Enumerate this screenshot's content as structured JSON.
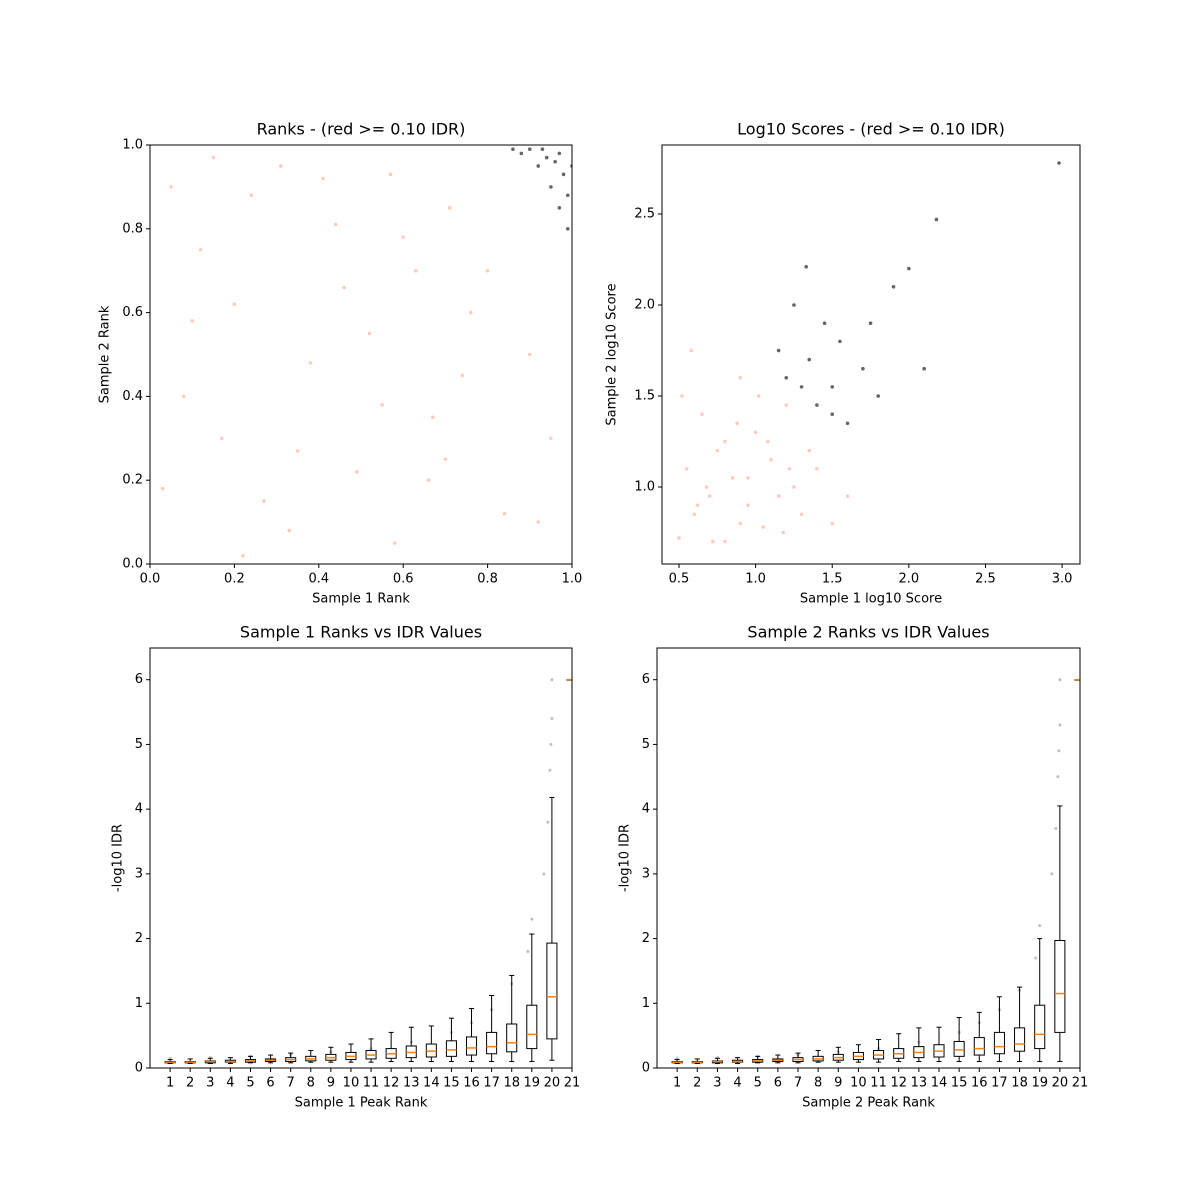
{
  "chart_data": [
    {
      "type": "scatter",
      "title": "Ranks - (red >= 0.10 IDR)",
      "x_label": "Sample 1 Rank",
      "y_label": "Sample 2 Rank",
      "xlim": [
        0,
        1
      ],
      "ylim": [
        0,
        1
      ],
      "xticks": [
        {
          "value": 0,
          "label": "0.0"
        },
        0.2,
        0.4,
        0.6,
        0.8,
        {
          "value": 1,
          "label": "1.0"
        }
      ],
      "yticks": [
        {
          "value": 0,
          "label": "0.0"
        },
        0.2,
        0.4,
        0.6,
        0.8,
        {
          "value": 1,
          "label": "1.0"
        }
      ],
      "series": [
        {
          "color": "#ff8c69",
          "x": [
            0.05,
            0.12,
            0.2,
            0.31,
            0.44,
            0.52,
            0.63,
            0.71,
            0.08,
            0.17,
            0.27,
            0.38,
            0.49,
            0.58,
            0.67,
            0.76,
            0.84,
            0.03,
            0.15,
            0.24,
            0.35,
            0.46,
            0.55,
            0.66,
            0.74,
            0.9,
            0.95,
            0.22,
            0.41,
            0.6,
            0.8,
            0.1,
            0.33,
            0.57,
            0.92,
            0.7
          ],
          "y": [
            0.9,
            0.75,
            0.62,
            0.95,
            0.81,
            0.55,
            0.7,
            0.85,
            0.4,
            0.3,
            0.15,
            0.48,
            0.22,
            0.05,
            0.35,
            0.6,
            0.12,
            0.18,
            0.97,
            0.88,
            0.27,
            0.66,
            0.38,
            0.2,
            0.45,
            0.5,
            0.3,
            0.02,
            0.92,
            0.78,
            0.7,
            0.58,
            0.08,
            0.93,
            0.1,
            0.25
          ]
        },
        {
          "color": "#000000",
          "x": [
            0.88,
            0.92,
            0.95,
            0.97,
            0.99,
            0.9,
            0.94,
            0.98,
            0.96,
            0.93,
            0.99,
            0.86,
            0.97,
            1.0
          ],
          "y": [
            0.98,
            0.95,
            0.9,
            0.85,
            0.8,
            0.99,
            0.97,
            0.93,
            0.96,
            0.99,
            0.88,
            0.99,
            0.98,
            0.95
          ]
        }
      ]
    },
    {
      "type": "scatter",
      "title": "Log10 Scores - (red >= 0.10 IDR)",
      "x_label": "Sample 1 log10 Score",
      "y_label": "Sample 2 log10 Score",
      "xlim": [
        0.389,
        3.117
      ],
      "ylim": [
        0.577,
        2.879
      ],
      "xticks": [
        0.5,
        {
          "value": 1,
          "label": "1.0"
        },
        1.5,
        {
          "value": 2,
          "label": "2.0"
        },
        2.5,
        {
          "value": 3,
          "label": "3.0"
        }
      ],
      "yticks": [
        {
          "value": 1,
          "label": "1.0"
        },
        1.5,
        {
          "value": 2,
          "label": "2.0"
        },
        2.5
      ],
      "series": [
        {
          "color": "#ff8c69",
          "x": [
            0.5,
            0.55,
            0.6,
            0.65,
            0.7,
            0.75,
            0.8,
            0.85,
            0.9,
            0.95,
            1.0,
            1.05,
            1.1,
            1.15,
            1.2,
            1.25,
            1.3,
            1.4,
            1.5,
            0.58,
            0.72,
            0.88,
            1.02,
            1.18,
            0.62,
            0.8,
            0.95,
            1.35,
            1.6,
            0.52,
            0.68,
            0.9,
            1.08,
            1.22
          ],
          "y": [
            0.72,
            1.1,
            0.85,
            1.4,
            0.95,
            1.2,
            0.7,
            1.05,
            1.6,
            0.9,
            1.3,
            0.78,
            1.15,
            0.95,
            1.45,
            1.0,
            0.85,
            1.1,
            0.8,
            1.75,
            0.7,
            1.35,
            1.5,
            0.75,
            0.9,
            1.25,
            1.05,
            1.2,
            0.95,
            1.5,
            1.0,
            0.8,
            1.25,
            1.1
          ]
        },
        {
          "color": "#000000",
          "x": [
            1.15,
            1.2,
            1.3,
            1.35,
            1.4,
            1.45,
            1.5,
            1.55,
            1.6,
            1.7,
            1.8,
            1.9,
            2.0,
            2.1,
            1.25,
            1.5,
            1.75,
            2.18,
            2.98,
            1.33
          ],
          "y": [
            1.75,
            1.6,
            1.55,
            1.7,
            1.45,
            1.9,
            1.4,
            1.8,
            1.35,
            1.65,
            1.5,
            2.1,
            2.2,
            1.65,
            2.0,
            1.55,
            1.9,
            2.47,
            2.78,
            2.21
          ]
        }
      ]
    },
    {
      "type": "box",
      "title": "Sample 1 Ranks vs IDR Values",
      "x_label": "Sample 1 Peak Rank",
      "y_label": "-log10 IDR",
      "xlim": [
        0,
        21
      ],
      "ylim": [
        0,
        6.49
      ],
      "xticks": [
        1,
        2,
        3,
        4,
        5,
        6,
        7,
        8,
        9,
        10,
        11,
        12,
        13,
        14,
        15,
        16,
        17,
        18,
        19,
        20,
        21
      ],
      "yticks": [
        0,
        1,
        2,
        3,
        4,
        5,
        6
      ],
      "median_color": "#ff7f0e",
      "points": {
        "color": "#000000",
        "x": [
          1,
          3,
          5,
          7,
          9,
          11,
          13,
          15,
          16,
          17,
          18,
          18.8,
          19,
          19.6,
          19.8,
          19.9,
          20,
          20,
          19.95
        ],
        "y": [
          0.15,
          0.16,
          0.18,
          0.2,
          0.25,
          0.3,
          0.4,
          0.55,
          0.7,
          0.9,
          1.3,
          1.8,
          2.3,
          3.0,
          3.8,
          4.6,
          5.4,
          6.0,
          5.0
        ]
      },
      "boxes": [
        {
          "position": 1,
          "whislo": 0.07,
          "q1": 0.08,
          "med": 0.09,
          "q3": 0.1,
          "whishi": 0.13
        },
        {
          "position": 2,
          "whislo": 0.07,
          "q1": 0.08,
          "med": 0.09,
          "q3": 0.1,
          "whishi": 0.14
        },
        {
          "position": 3,
          "whislo": 0.07,
          "q1": 0.08,
          "med": 0.1,
          "q3": 0.11,
          "whishi": 0.15
        },
        {
          "position": 4,
          "whislo": 0.07,
          "q1": 0.09,
          "med": 0.1,
          "q3": 0.12,
          "whishi": 0.16
        },
        {
          "position": 5,
          "whislo": 0.08,
          "q1": 0.09,
          "med": 0.11,
          "q3": 0.13,
          "whishi": 0.18
        },
        {
          "position": 6,
          "whislo": 0.08,
          "q1": 0.1,
          "med": 0.12,
          "q3": 0.14,
          "whishi": 0.2
        },
        {
          "position": 7,
          "whislo": 0.08,
          "q1": 0.1,
          "med": 0.13,
          "q3": 0.16,
          "whishi": 0.23
        },
        {
          "position": 8,
          "whislo": 0.09,
          "q1": 0.11,
          "med": 0.14,
          "q3": 0.18,
          "whishi": 0.27
        },
        {
          "position": 9,
          "whislo": 0.09,
          "q1": 0.12,
          "med": 0.16,
          "q3": 0.21,
          "whishi": 0.32
        },
        {
          "position": 10,
          "whislo": 0.09,
          "q1": 0.13,
          "med": 0.18,
          "q3": 0.24,
          "whishi": 0.37
        },
        {
          "position": 11,
          "whislo": 0.09,
          "q1": 0.14,
          "med": 0.2,
          "q3": 0.27,
          "whishi": 0.45
        },
        {
          "position": 12,
          "whislo": 0.1,
          "q1": 0.15,
          "med": 0.22,
          "q3": 0.3,
          "whishi": 0.55
        },
        {
          "position": 13,
          "whislo": 0.1,
          "q1": 0.16,
          "med": 0.24,
          "q3": 0.34,
          "whishi": 0.63
        },
        {
          "position": 14,
          "whislo": 0.1,
          "q1": 0.17,
          "med": 0.26,
          "q3": 0.37,
          "whishi": 0.65
        },
        {
          "position": 15,
          "whislo": 0.1,
          "q1": 0.18,
          "med": 0.28,
          "q3": 0.42,
          "whishi": 0.77
        },
        {
          "position": 16,
          "whislo": 0.1,
          "q1": 0.2,
          "med": 0.31,
          "q3": 0.48,
          "whishi": 0.92
        },
        {
          "position": 17,
          "whislo": 0.1,
          "q1": 0.22,
          "med": 0.33,
          "q3": 0.55,
          "whishi": 1.12
        },
        {
          "position": 18,
          "whislo": 0.1,
          "q1": 0.25,
          "med": 0.39,
          "q3": 0.68,
          "whishi": 1.43
        },
        {
          "position": 19,
          "whislo": 0.1,
          "q1": 0.3,
          "med": 0.52,
          "q3": 0.97,
          "whishi": 2.07
        },
        {
          "position": 20,
          "whislo": 0.12,
          "q1": 0.45,
          "med": 1.1,
          "q3": 1.93,
          "whishi": 4.18
        },
        {
          "position": 21,
          "whislo": 6,
          "q1": 6,
          "med": 6,
          "q3": 6,
          "whishi": 6
        }
      ]
    },
    {
      "type": "box",
      "title": "Sample 2 Ranks vs IDR Values",
      "x_label": "Sample 2 Peak Rank",
      "y_label": "-log10 IDR",
      "xlim": [
        0,
        21
      ],
      "ylim": [
        0,
        6.49
      ],
      "xticks": [
        1,
        2,
        3,
        4,
        5,
        6,
        7,
        8,
        9,
        10,
        11,
        12,
        13,
        14,
        15,
        16,
        17,
        18,
        19,
        20,
        21
      ],
      "yticks": [
        0,
        1,
        2,
        3,
        4,
        5,
        6
      ],
      "median_color": "#ff7f0e",
      "points": {
        "color": "#000000",
        "x": [
          1,
          3,
          5,
          7,
          9,
          11,
          13,
          15,
          16,
          17,
          18,
          18.8,
          19,
          19.6,
          19.8,
          19.9,
          20,
          20,
          19.95
        ],
        "y": [
          0.15,
          0.16,
          0.18,
          0.2,
          0.25,
          0.3,
          0.4,
          0.55,
          0.7,
          0.9,
          1.2,
          1.7,
          2.2,
          3.0,
          3.7,
          4.5,
          5.3,
          6.0,
          4.9
        ]
      },
      "boxes": [
        {
          "position": 1,
          "whislo": 0.07,
          "q1": 0.08,
          "med": 0.09,
          "q3": 0.1,
          "whishi": 0.13
        },
        {
          "position": 2,
          "whislo": 0.07,
          "q1": 0.08,
          "med": 0.09,
          "q3": 0.1,
          "whishi": 0.14
        },
        {
          "position": 3,
          "whislo": 0.07,
          "q1": 0.08,
          "med": 0.1,
          "q3": 0.11,
          "whishi": 0.15
        },
        {
          "position": 4,
          "whislo": 0.07,
          "q1": 0.09,
          "med": 0.1,
          "q3": 0.12,
          "whishi": 0.16
        },
        {
          "position": 5,
          "whislo": 0.08,
          "q1": 0.09,
          "med": 0.11,
          "q3": 0.13,
          "whishi": 0.18
        },
        {
          "position": 6,
          "whislo": 0.08,
          "q1": 0.1,
          "med": 0.12,
          "q3": 0.14,
          "whishi": 0.2
        },
        {
          "position": 7,
          "whislo": 0.08,
          "q1": 0.1,
          "med": 0.13,
          "q3": 0.16,
          "whishi": 0.23
        },
        {
          "position": 8,
          "whislo": 0.09,
          "q1": 0.11,
          "med": 0.14,
          "q3": 0.18,
          "whishi": 0.27
        },
        {
          "position": 9,
          "whislo": 0.09,
          "q1": 0.12,
          "med": 0.16,
          "q3": 0.21,
          "whishi": 0.32
        },
        {
          "position": 10,
          "whislo": 0.09,
          "q1": 0.13,
          "med": 0.18,
          "q3": 0.24,
          "whishi": 0.36
        },
        {
          "position": 11,
          "whislo": 0.09,
          "q1": 0.14,
          "med": 0.2,
          "q3": 0.27,
          "whishi": 0.44
        },
        {
          "position": 12,
          "whislo": 0.1,
          "q1": 0.15,
          "med": 0.22,
          "q3": 0.3,
          "whishi": 0.53
        },
        {
          "position": 13,
          "whislo": 0.1,
          "q1": 0.16,
          "med": 0.24,
          "q3": 0.33,
          "whishi": 0.62
        },
        {
          "position": 14,
          "whislo": 0.1,
          "q1": 0.17,
          "med": 0.26,
          "q3": 0.36,
          "whishi": 0.63
        },
        {
          "position": 15,
          "whislo": 0.1,
          "q1": 0.18,
          "med": 0.28,
          "q3": 0.41,
          "whishi": 0.78
        },
        {
          "position": 16,
          "whislo": 0.1,
          "q1": 0.2,
          "med": 0.3,
          "q3": 0.47,
          "whishi": 0.86
        },
        {
          "position": 17,
          "whislo": 0.1,
          "q1": 0.22,
          "med": 0.33,
          "q3": 0.55,
          "whishi": 1.1
        },
        {
          "position": 18,
          "whislo": 0.1,
          "q1": 0.26,
          "med": 0.37,
          "q3": 0.62,
          "whishi": 1.25
        },
        {
          "position": 19,
          "whislo": 0.1,
          "q1": 0.3,
          "med": 0.52,
          "q3": 0.97,
          "whishi": 2.0
        },
        {
          "position": 20,
          "whislo": 0.1,
          "q1": 0.55,
          "med": 1.15,
          "q3": 1.97,
          "whishi": 4.05
        },
        {
          "position": 21,
          "whislo": 6,
          "q1": 6,
          "med": 6,
          "q3": 6,
          "whishi": 6
        }
      ]
    }
  ]
}
